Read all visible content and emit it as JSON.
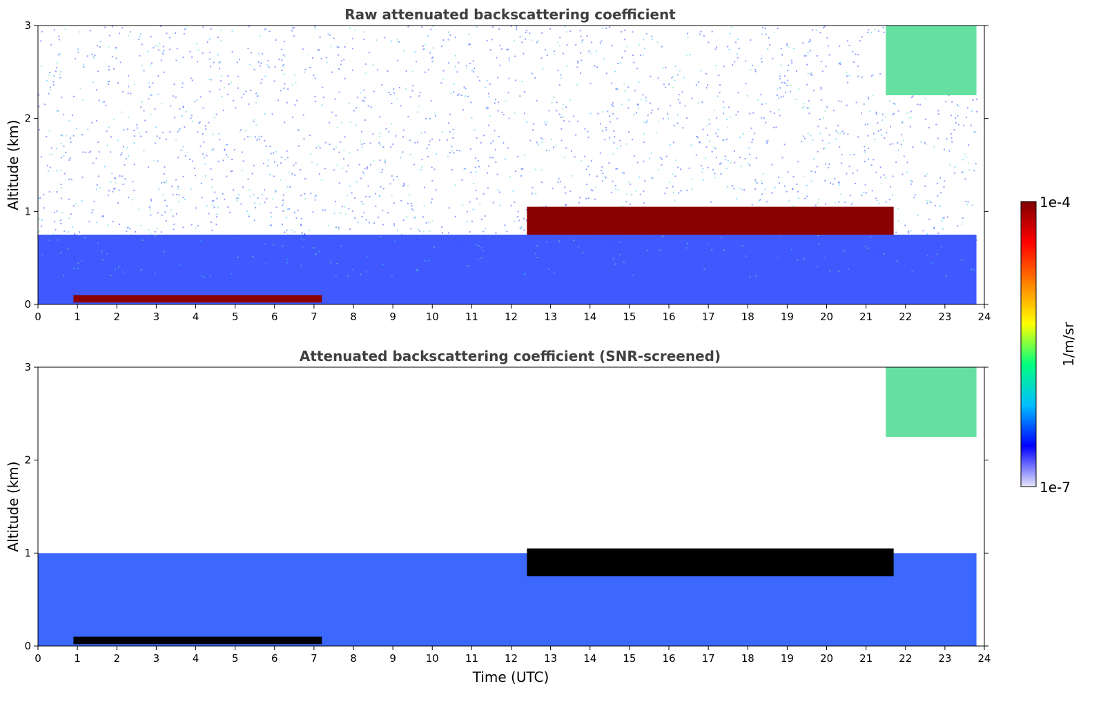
{
  "chart_data": [
    {
      "type": "heatmap",
      "title": "Raw attenuated backscattering coefficient",
      "ylabel": "Altitude (km)",
      "xlabel": "",
      "xlim": [
        0,
        24
      ],
      "ylim": [
        0,
        3
      ],
      "xticks": [
        "0",
        "1",
        "2",
        "3",
        "4",
        "5",
        "6",
        "7",
        "8",
        "9",
        "10",
        "11",
        "12",
        "13",
        "14",
        "15",
        "16",
        "17",
        "18",
        "19",
        "20",
        "21",
        "22",
        "23",
        "24"
      ],
      "yticks": [
        "0",
        "1",
        "2",
        "3"
      ],
      "features": [
        {
          "name": "low cloud / fog layer",
          "time": [
            0.9,
            7.2
          ],
          "altitude_km": [
            0.02,
            0.1
          ],
          "level": "1e-4"
        },
        {
          "name": "cloud layer",
          "time": [
            12.4,
            21.7
          ],
          "altitude_km": [
            0.75,
            1.05
          ],
          "level": "1e-4"
        },
        {
          "name": "high cloud",
          "time": [
            21.5,
            23.8
          ],
          "altitude_km": [
            2.25,
            3.0
          ],
          "level": "~5e-5"
        },
        {
          "name": "boundary layer aerosol",
          "time": [
            0,
            23.8
          ],
          "altitude_km": [
            0,
            0.75
          ],
          "level": "~1e-6"
        }
      ]
    },
    {
      "type": "heatmap",
      "title": "Attenuated backscattering coefficient (SNR-screened)",
      "ylabel": "Altitude (km)",
      "xlabel": "Time (UTC)",
      "xlim": [
        0,
        24
      ],
      "ylim": [
        0,
        3
      ],
      "xticks": [
        "0",
        "1",
        "2",
        "3",
        "4",
        "5",
        "6",
        "7",
        "8",
        "9",
        "10",
        "11",
        "12",
        "13",
        "14",
        "15",
        "16",
        "17",
        "18",
        "19",
        "20",
        "21",
        "22",
        "23",
        "24"
      ],
      "yticks": [
        "0",
        "1",
        "2",
        "3"
      ],
      "features": [
        {
          "name": "low cloud / fog layer",
          "time": [
            0.9,
            7.2
          ],
          "altitude_km": [
            0.02,
            0.1
          ],
          "level": "saturated"
        },
        {
          "name": "cloud layer",
          "time": [
            12.4,
            21.7
          ],
          "altitude_km": [
            0.75,
            1.05
          ],
          "level": "saturated"
        },
        {
          "name": "high cloud",
          "time": [
            21.5,
            23.8
          ],
          "altitude_km": [
            2.25,
            3.0
          ],
          "level": "~5e-5"
        },
        {
          "name": "boundary layer aerosol",
          "time": [
            0,
            23.8
          ],
          "altitude_km": [
            0,
            1.0
          ],
          "level": "~1e-6"
        }
      ]
    }
  ],
  "colorbar": {
    "max_label": "1e-4",
    "min_label": "1e-7",
    "label": "1/m/sr",
    "colormap": "jet",
    "colors": [
      "#e6e6fa",
      "#0000ff",
      "#00bfff",
      "#00ff80",
      "#ffff00",
      "#ff8000",
      "#ff0000",
      "#800000"
    ]
  }
}
